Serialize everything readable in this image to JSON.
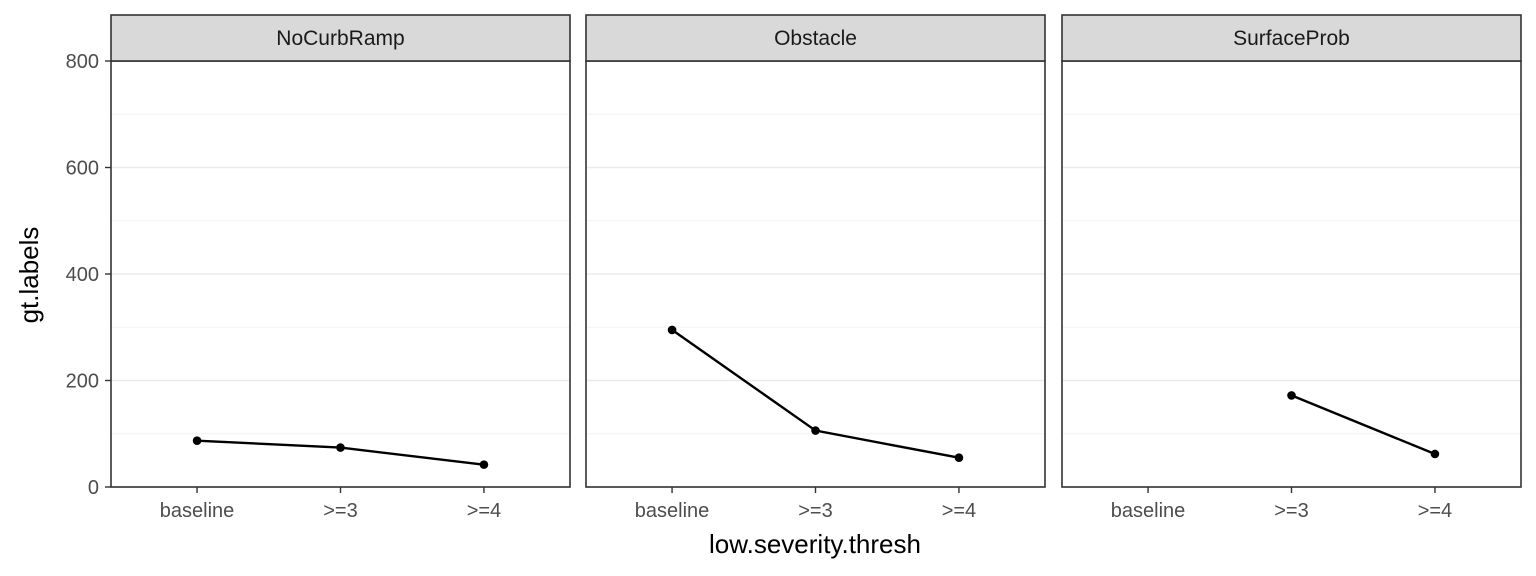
{
  "chart_data": {
    "type": "line",
    "xlabel": "low.severity.thresh",
    "ylabel": "gt.labels",
    "categories": [
      "baseline",
      ">=3",
      ">=4"
    ],
    "ylim": [
      0,
      800
    ],
    "yticks": [
      0,
      200,
      400,
      600,
      800
    ],
    "grid": true,
    "legend": "none",
    "panels": [
      {
        "title": "NoCurbRamp",
        "values": [
          87,
          74,
          42
        ]
      },
      {
        "title": "Obstacle",
        "values": [
          295,
          106,
          55
        ]
      },
      {
        "title": "SurfaceProb",
        "values": [
          null,
          172,
          62
        ]
      }
    ]
  },
  "colors": {
    "line": "#000000",
    "strip": "#d9d9d9",
    "grid": "#ebebeb",
    "border": "#333333"
  }
}
